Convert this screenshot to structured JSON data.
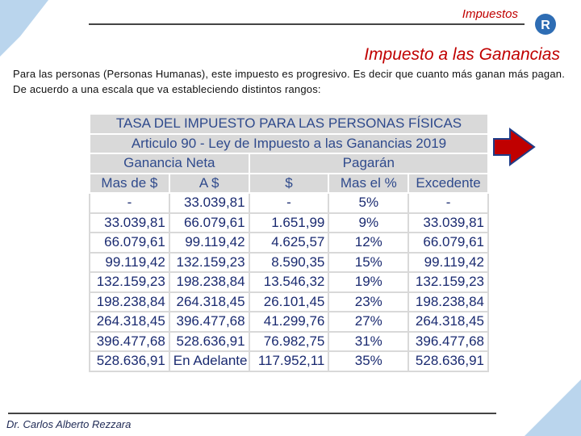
{
  "header": {
    "section": "Impuestos",
    "logo": "R",
    "title": "Impuesto a las Ganancias"
  },
  "intro": "Para las personas (Personas Humanas), este impuesto es progresivo. Es decir que cuanto más ganan más pagan. De acuerdo a una escala que va estableciendo distintos rangos:",
  "table": {
    "title": "TASA DEL IMPUESTO PARA LAS PERSONAS FÍSICAS",
    "subtitle": "Articulo 90 - Ley de Impuesto a las Ganancias 2019",
    "groups": [
      "Ganancia Neta",
      "Pagarán"
    ],
    "columns": [
      "Mas de $",
      "A $",
      "$",
      "Mas el %",
      "Excedente"
    ],
    "rows": [
      [
        "-",
        "33.039,81",
        "-",
        "5%",
        "-"
      ],
      [
        "33.039,81",
        "66.079,61",
        "1.651,99",
        "9%",
        "33.039,81"
      ],
      [
        "66.079,61",
        "99.119,42",
        "4.625,57",
        "12%",
        "66.079,61"
      ],
      [
        "99.119,42",
        "132.159,23",
        "8.590,35",
        "15%",
        "99.119,42"
      ],
      [
        "132.159,23",
        "198.238,84",
        "13.546,32",
        "19%",
        "132.159,23"
      ],
      [
        "198.238,84",
        "264.318,45",
        "26.101,45",
        "23%",
        "198.238,84"
      ],
      [
        "264.318,45",
        "396.477,68",
        "41.299,76",
        "27%",
        "264.318,45"
      ],
      [
        "396.477,68",
        "528.636,91",
        "76.982,75",
        "31%",
        "396.477,68"
      ],
      [
        "528.636,91",
        "En Adelante",
        "117.952,11",
        "35%",
        "528.636,91"
      ]
    ]
  },
  "footer": {
    "author": "Dr. Carlos Alberto Rezzara"
  }
}
